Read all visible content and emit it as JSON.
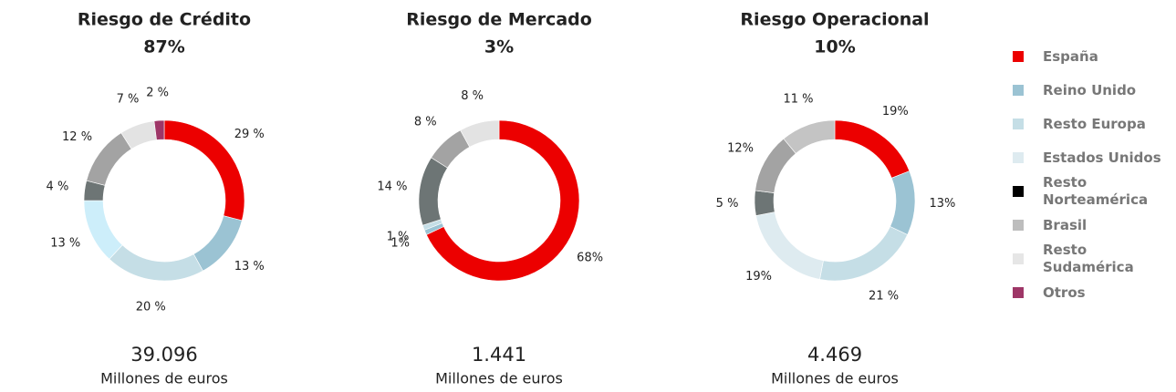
{
  "chart_data": [
    {
      "type": "pie",
      "title": "Riesgo de Crédito",
      "subtitle": "87%",
      "values": [
        29,
        13,
        20,
        13,
        4,
        12,
        7,
        2
      ],
      "value_labels": [
        "29 %",
        "13 %",
        "20 %",
        "13 %",
        "4 %",
        "12 %",
        "7 %",
        "2 %"
      ],
      "colors": [
        "#ec0000",
        "#9bc3d3",
        "#c5dee6",
        "#cdeefa",
        "#6d7575",
        "#a3a3a3",
        "#e3e3e3",
        "#9e3667"
      ],
      "total": "39.096",
      "unit": "Millones de euros"
    },
    {
      "type": "pie",
      "title": "Riesgo de Mercado",
      "subtitle": "3%",
      "values": [
        68,
        1,
        1,
        null,
        14,
        8,
        8,
        null
      ],
      "value_labels": [
        "68%",
        "1%",
        "1 %",
        null,
        "14 %",
        "8 %",
        "8 %",
        null
      ],
      "colors": [
        "#ec0000",
        "#9bc3d3",
        "#c5dee6",
        "#deebf0",
        "#6d7575",
        "#a3a3a3",
        "#e3e3e3",
        "#9e3667"
      ],
      "total": "1.441",
      "unit": "Millones de euros"
    },
    {
      "type": "pie",
      "title": "Riesgo Operacional",
      "subtitle": "10%",
      "values": [
        19,
        13,
        21,
        19,
        5,
        12,
        11,
        null
      ],
      "value_labels": [
        "19%",
        "13%",
        "21 %",
        "19%",
        "5 %",
        "12%",
        "11 %",
        null
      ],
      "colors": [
        "#ec0000",
        "#9bc3d3",
        "#c5dee6",
        "#deebf0",
        "#6d7575",
        "#a3a3a3",
        "#c4c4c4",
        "#9e3667"
      ],
      "total": "4.469",
      "unit": "Millones de euros"
    }
  ],
  "legend": [
    {
      "name": "España",
      "color": "#ec0000"
    },
    {
      "name": "Reino Unido",
      "color": "#9bc3d3"
    },
    {
      "name": "Resto Europa",
      "color": "#c5dee6"
    },
    {
      "name": "Estados Unidos",
      "color": "#deebf0"
    },
    {
      "name": "Resto Norteamérica",
      "color": "#000000"
    },
    {
      "name": "Brasil",
      "color": "#bdbdbd"
    },
    {
      "name": "Resto Sudamérica",
      "color": "#e6e6e6"
    },
    {
      "name": "Otros",
      "color": "#9e3667"
    }
  ]
}
